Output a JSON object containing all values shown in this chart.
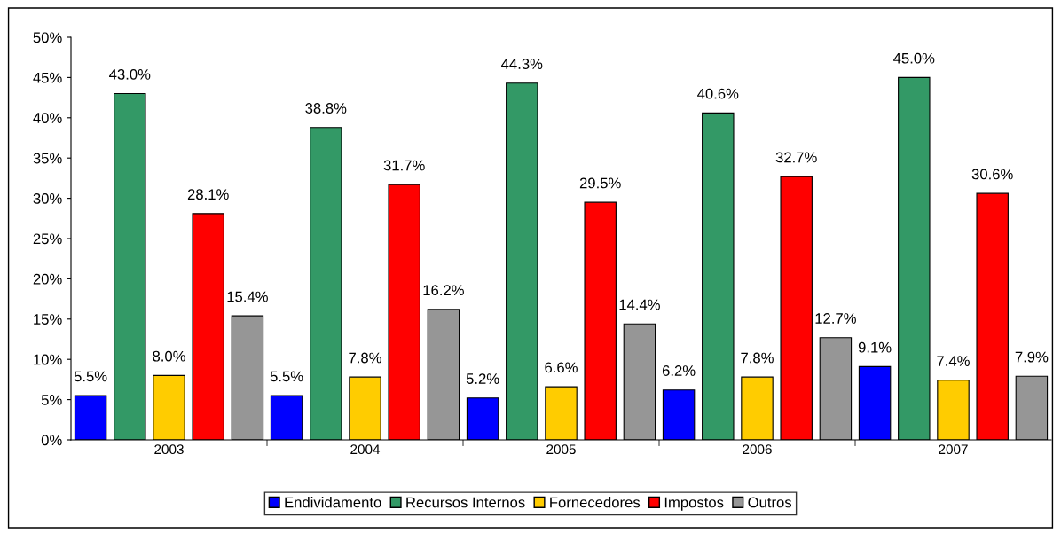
{
  "chart_data": {
    "type": "bar",
    "categories": [
      "2003",
      "2004",
      "2005",
      "2006",
      "2007"
    ],
    "series": [
      {
        "name": "Endividamento",
        "color": "#0000ff",
        "values": [
          5.5,
          5.5,
          5.2,
          6.2,
          9.1
        ],
        "value_labels": [
          "5.5%",
          "5.5%",
          "5.2%",
          "6.2%",
          "9.1%"
        ]
      },
      {
        "name": "Recursos Internos",
        "color": "#339966",
        "values": [
          43.0,
          38.8,
          44.3,
          40.6,
          45.0
        ],
        "value_labels": [
          "43.0%",
          "38.8%",
          "44.3%",
          "40.6%",
          "45.0%"
        ]
      },
      {
        "name": "Fornecedores",
        "color": "#ffcc00",
        "values": [
          8.0,
          7.8,
          6.6,
          7.8,
          7.4
        ],
        "value_labels": [
          "8.0%",
          "7.8%",
          "6.6%",
          "7.8%",
          "7.4%"
        ]
      },
      {
        "name": "Impostos",
        "color": "#ff0000",
        "values": [
          28.1,
          31.7,
          29.5,
          32.7,
          30.6
        ],
        "value_labels": [
          "28.1%",
          "31.7%",
          "29.5%",
          "32.7%",
          "30.6%"
        ]
      },
      {
        "name": "Outros",
        "color": "#969696",
        "values": [
          15.4,
          16.2,
          14.4,
          12.7,
          7.9
        ],
        "value_labels": [
          "15.4%",
          "16.2%",
          "14.4%",
          "12.7%",
          "7.9%"
        ]
      }
    ],
    "ylim": [
      0,
      50
    ],
    "yticks": [
      {
        "value": 0,
        "label": "0%"
      },
      {
        "value": 5,
        "label": "5%"
      },
      {
        "value": 10,
        "label": "10%"
      },
      {
        "value": 15,
        "label": "15%"
      },
      {
        "value": 20,
        "label": "20%"
      },
      {
        "value": 25,
        "label": "25%"
      },
      {
        "value": 30,
        "label": "30%"
      },
      {
        "value": 35,
        "label": "35%"
      },
      {
        "value": 40,
        "label": "40%"
      },
      {
        "value": 45,
        "label": "45%"
      },
      {
        "value": 50,
        "label": "50%"
      }
    ],
    "grid": false,
    "legend": "bottom"
  }
}
